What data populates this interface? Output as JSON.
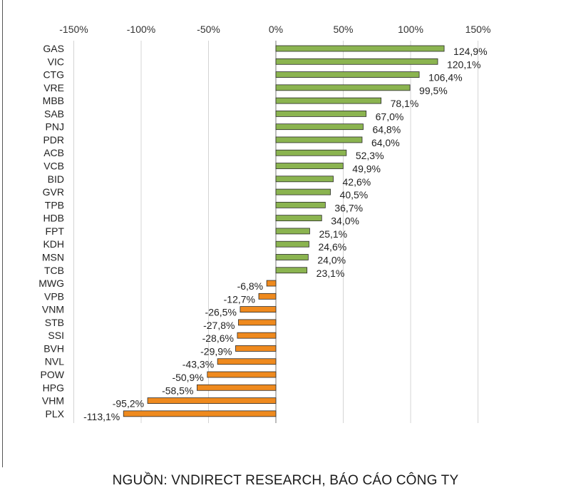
{
  "source_note": "NGUỒN: VNDIRECT RESEARCH, BÁO CÁO CÔNG TY",
  "colors": {
    "positive": "#8bb450",
    "negative": "#ef8a1e",
    "grid": "#d4d4d4",
    "outline": "#2b2b2b"
  },
  "chart_data": {
    "type": "bar",
    "orientation": "horizontal",
    "title": "",
    "xlabel": "",
    "ylabel": "",
    "xlim": [
      -150,
      150
    ],
    "x_ticks": [
      -150,
      -100,
      -50,
      0,
      50,
      100,
      150
    ],
    "x_tick_labels": [
      "-150%",
      "-100%",
      "-50%",
      "0%",
      "50%",
      "100%",
      "150%"
    ],
    "x_axis_position": "top",
    "grid": true,
    "legend": "none",
    "categories": [
      "GAS",
      "VIC",
      "CTG",
      "VRE",
      "MBB",
      "SAB",
      "PNJ",
      "PDR",
      "ACB",
      "VCB",
      "BID",
      "GVR",
      "TPB",
      "HDB",
      "FPT",
      "KDH",
      "MSN",
      "TCB",
      "MWG",
      "VPB",
      "VNM",
      "STB",
      "SSI",
      "BVH",
      "NVL",
      "POW",
      "HPG",
      "VHM",
      "PLX"
    ],
    "values": [
      124.9,
      120.1,
      106.4,
      99.5,
      78.1,
      67.0,
      64.8,
      64.0,
      52.3,
      49.9,
      42.6,
      40.5,
      36.7,
      34.0,
      25.1,
      24.6,
      24.0,
      23.1,
      -6.8,
      -12.7,
      -26.5,
      -27.8,
      -28.6,
      -29.9,
      -43.3,
      -50.9,
      -58.5,
      -95.2,
      -113.1
    ],
    "data_labels": [
      "124,9%",
      "120,1%",
      "106,4%",
      "99,5%",
      "78,1%",
      "67,0%",
      "64,8%",
      "64,0%",
      "52,3%",
      "49,9%",
      "42,6%",
      "40,5%",
      "36,7%",
      "34,0%",
      "25,1%",
      "24,6%",
      "24,0%",
      "23,1%",
      "-6,8%",
      "-12,7%",
      "-26,5%",
      "-27,8%",
      "-28,6%",
      "-29,9%",
      "-43,3%",
      "-50,9%",
      "-58,5%",
      "-95,2%",
      "-113,1%"
    ]
  }
}
